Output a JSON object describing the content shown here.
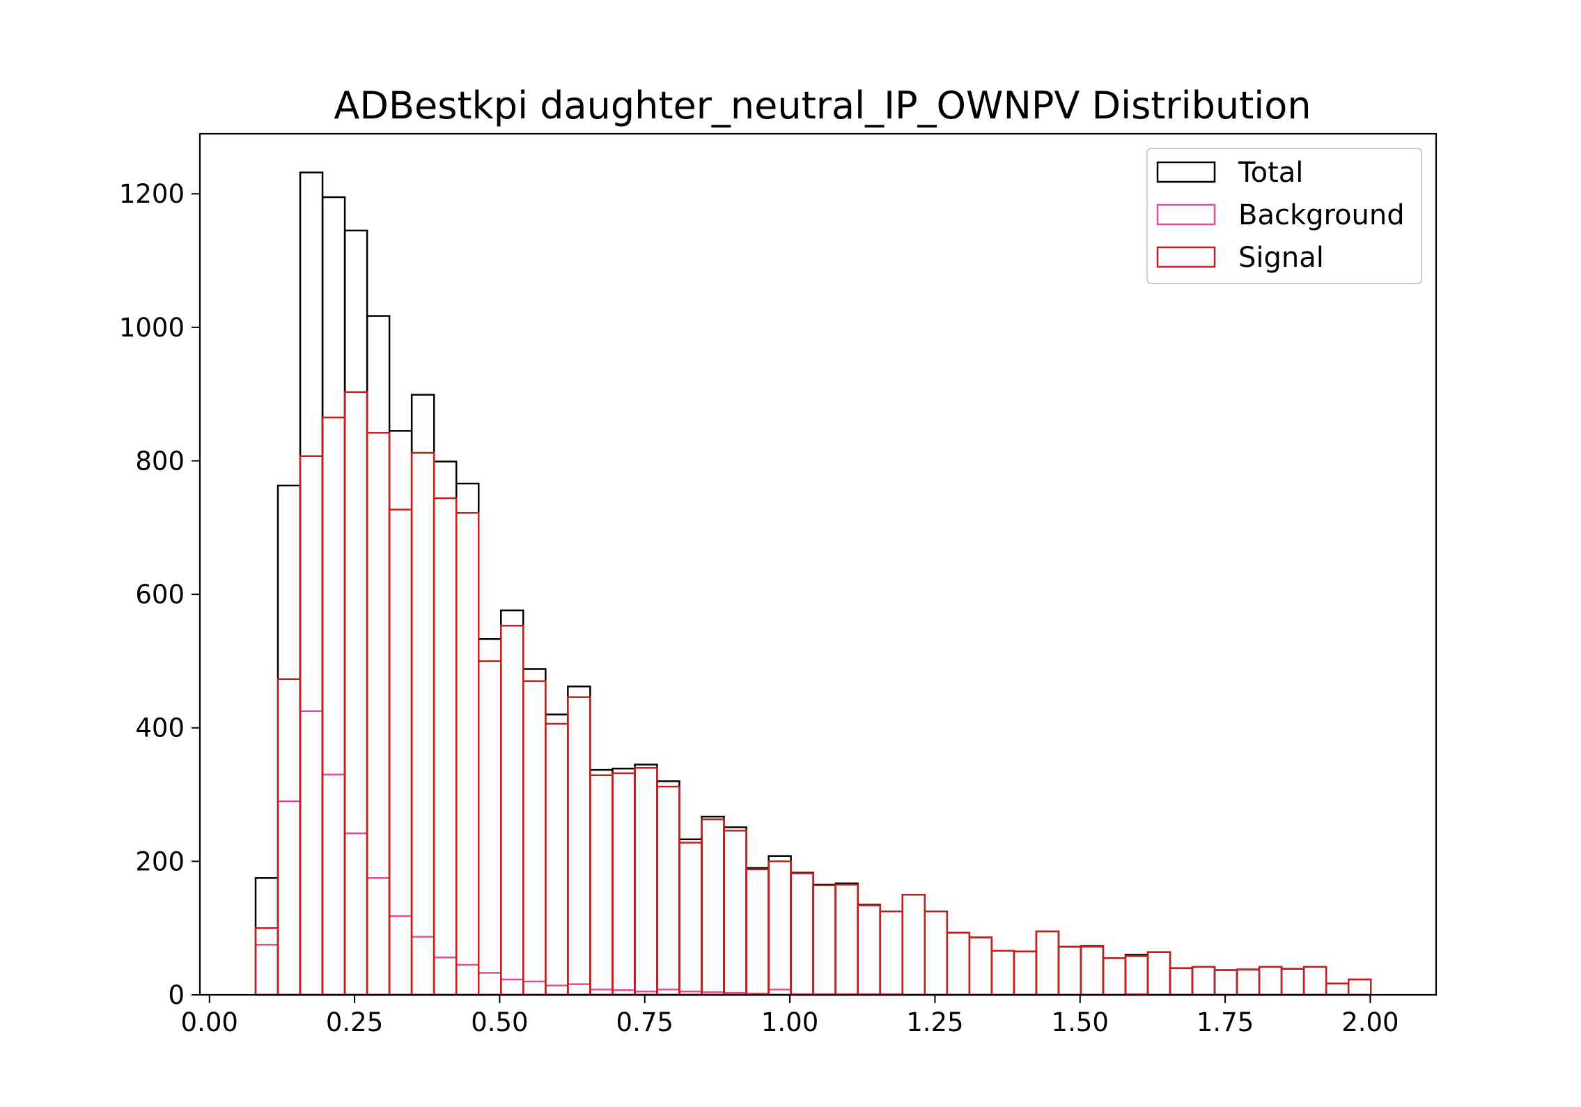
{
  "chart_data": {
    "type": "histogram-step",
    "title": "ADBestkpi daughter_neutral_IP_OWNPV Distribution",
    "xlabel": "",
    "ylabel": "",
    "xlim": [
      -0.0165,
      2.1135
    ],
    "ylim": [
      0,
      1290
    ],
    "xticks": [
      {
        "value": 0.0,
        "label": "0.00"
      },
      {
        "value": 0.25,
        "label": "0.25"
      },
      {
        "value": 0.5,
        "label": "0.50"
      },
      {
        "value": 0.75,
        "label": "0.75"
      },
      {
        "value": 1.0,
        "label": "1.00"
      },
      {
        "value": 1.25,
        "label": "1.25"
      },
      {
        "value": 1.5,
        "label": "1.50"
      },
      {
        "value": 1.75,
        "label": "1.75"
      },
      {
        "value": 2.0,
        "label": "2.00"
      }
    ],
    "yticks": [
      {
        "value": 0,
        "label": "0"
      },
      {
        "value": 200,
        "label": "200"
      },
      {
        "value": 400,
        "label": "400"
      },
      {
        "value": 600,
        "label": "600"
      },
      {
        "value": 800,
        "label": "800"
      },
      {
        "value": 1000,
        "label": "1000"
      },
      {
        "value": 1200,
        "label": "1200"
      }
    ],
    "bin_start": 0.0795,
    "bin_width": 0.03843,
    "legend_position": "top-right",
    "grid": false,
    "series": [
      {
        "name": "Total",
        "color": "#000000",
        "values": [
          175,
          763,
          1232,
          1195,
          1145,
          1017,
          845,
          899,
          799,
          766,
          533,
          576,
          488,
          420,
          462,
          337,
          339,
          345,
          320,
          233,
          267,
          251,
          190,
          208,
          183,
          165,
          167,
          135,
          125,
          150,
          125,
          93,
          86,
          66,
          65,
          95,
          72,
          73,
          55,
          60,
          64,
          40,
          42,
          37,
          38,
          42,
          39,
          42,
          17,
          23
        ]
      },
      {
        "name": "Background",
        "color": "#e8499a",
        "values": [
          75,
          290,
          425,
          330,
          242,
          175,
          118,
          87,
          56,
          45,
          33,
          23,
          20,
          14,
          16,
          8,
          7,
          5,
          8,
          5,
          4,
          3,
          2,
          8,
          1,
          1,
          1,
          1,
          1,
          0,
          0,
          0,
          0,
          0,
          0,
          0,
          0,
          0,
          0,
          1,
          0,
          0,
          0,
          0,
          0,
          0,
          0,
          0,
          0,
          0
        ]
      },
      {
        "name": "Signal",
        "color": "#c0211f",
        "values": [
          100,
          473,
          807,
          865,
          903,
          842,
          727,
          812,
          744,
          722,
          500,
          553,
          470,
          406,
          446,
          329,
          332,
          340,
          312,
          228,
          263,
          246,
          188,
          200,
          182,
          164,
          165,
          134,
          125,
          150,
          125,
          93,
          86,
          66,
          65,
          95,
          72,
          72,
          55,
          58,
          64,
          40,
          42,
          37,
          38,
          42,
          39,
          42,
          17,
          23
        ]
      }
    ]
  }
}
